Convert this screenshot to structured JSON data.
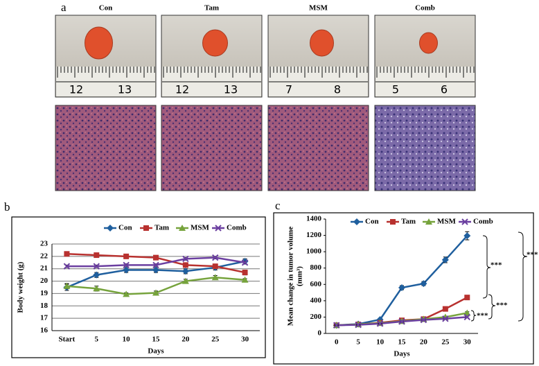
{
  "panel_a": {
    "label": "a",
    "groups": [
      {
        "name": "Con",
        "ruler": [
          "12",
          "13"
        ]
      },
      {
        "name": "Tam",
        "ruler": [
          "12",
          "13"
        ]
      },
      {
        "name": "MSM",
        "ruler": [
          "7",
          "8"
        ]
      },
      {
        "name": "Comb",
        "ruler": [
          "5",
          "6"
        ]
      }
    ]
  },
  "chart_data": [
    {
      "type": "line",
      "panel": "b",
      "ylabel": "Body weight (g)",
      "xlabel": "Days",
      "categories": [
        "Start",
        "5",
        "10",
        "15",
        "20",
        "25",
        "30"
      ],
      "ylim": [
        16,
        23
      ],
      "yticks": [
        16,
        17,
        18,
        19,
        20,
        21,
        22,
        23
      ],
      "grid": true,
      "series": [
        {
          "name": "Con",
          "color": "#1f5f9e",
          "marker": "diamond",
          "values": [
            19.5,
            20.5,
            20.9,
            20.9,
            20.8,
            21.1,
            21.6
          ],
          "errors": [
            0.25,
            0.2,
            0.2,
            0.2,
            0.2,
            0.2,
            0.2
          ]
        },
        {
          "name": "Tam",
          "color": "#b8312f",
          "marker": "square",
          "values": [
            22.2,
            22.1,
            22.0,
            21.9,
            21.3,
            21.2,
            20.7
          ],
          "errors": [
            0.1,
            0.1,
            0.1,
            0.1,
            0.1,
            0.1,
            0.2
          ]
        },
        {
          "name": "MSM",
          "color": "#76a33c",
          "marker": "triangle",
          "values": [
            19.6,
            19.4,
            18.95,
            19.05,
            20.0,
            20.3,
            20.1
          ],
          "errors": [
            0.2,
            0.2,
            0.1,
            0.15,
            0.15,
            0.15,
            0.1
          ]
        },
        {
          "name": "Comb",
          "color": "#6b3fa0",
          "marker": "x",
          "values": [
            21.2,
            21.2,
            21.3,
            21.3,
            21.8,
            21.9,
            21.5
          ],
          "errors": [
            0.1,
            0.1,
            0.1,
            0.1,
            0.1,
            0.1,
            0.1
          ]
        }
      ]
    },
    {
      "type": "line",
      "panel": "c",
      "ylabel": [
        "Mean change in tumor volume",
        "(mm³)"
      ],
      "xlabel": "Days",
      "categories": [
        "0",
        "5",
        "10",
        "15",
        "20",
        "25",
        "30"
      ],
      "ylim": [
        0,
        1400
      ],
      "yticks": [
        0,
        200,
        400,
        600,
        800,
        1000,
        1200,
        1400
      ],
      "grid": false,
      "annotations": [
        "***",
        "***",
        "***",
        "***"
      ],
      "series": [
        {
          "name": "Con",
          "color": "#1f5f9e",
          "marker": "diamond",
          "values": [
            100,
            115,
            170,
            560,
            610,
            900,
            1195
          ],
          "errors": [
            10,
            10,
            15,
            25,
            25,
            35,
            50
          ]
        },
        {
          "name": "Tam",
          "color": "#b8312f",
          "marker": "square",
          "values": [
            100,
            110,
            130,
            160,
            175,
            300,
            440
          ],
          "errors": [
            5,
            5,
            5,
            10,
            10,
            15,
            15
          ]
        },
        {
          "name": "MSM",
          "color": "#76a33c",
          "marker": "triangle",
          "values": [
            100,
            110,
            125,
            150,
            175,
            200,
            250
          ],
          "errors": [
            5,
            5,
            5,
            10,
            10,
            10,
            15
          ]
        },
        {
          "name": "Comb",
          "color": "#6b3fa0",
          "marker": "x",
          "values": [
            100,
            105,
            120,
            145,
            165,
            180,
            200
          ],
          "errors": [
            5,
            5,
            5,
            10,
            10,
            10,
            10
          ]
        }
      ]
    }
  ]
}
